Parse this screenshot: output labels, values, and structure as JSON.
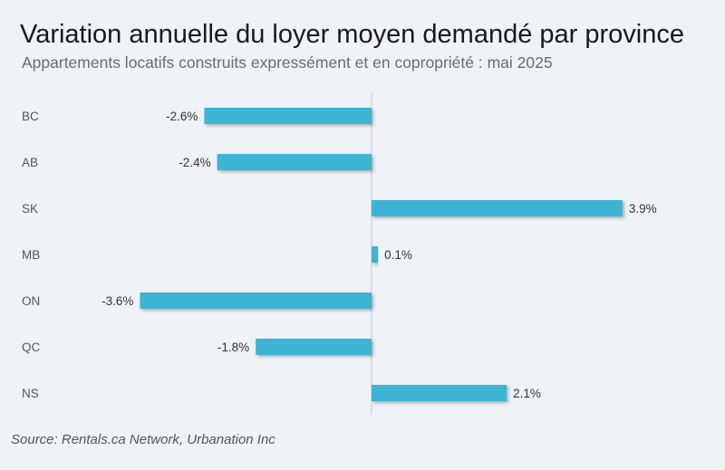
{
  "chart_data": {
    "type": "bar",
    "orientation": "horizontal",
    "title": "Variation annuelle du loyer moyen demandé par province",
    "subtitle": "Appartements locatifs construits expressément et en copropriété : mai 2025",
    "categories": [
      "BC",
      "AB",
      "SK",
      "MB",
      "ON",
      "QC",
      "NS"
    ],
    "values": [
      -2.6,
      -2.4,
      3.9,
      0.1,
      -3.6,
      -1.8,
      2.1
    ],
    "value_labels": [
      "-2.6%",
      "-2.4%",
      "3.9%",
      "0.1%",
      "-3.6%",
      "-1.8%",
      "2.1%"
    ],
    "xlim": [
      -3.6,
      3.9
    ],
    "xlabel": "",
    "ylabel": "",
    "bar_color": "#3cb4d4",
    "axis_color": "#c8c8c8",
    "source": "Source: Rentals.ca Network, Urbanation Inc"
  }
}
